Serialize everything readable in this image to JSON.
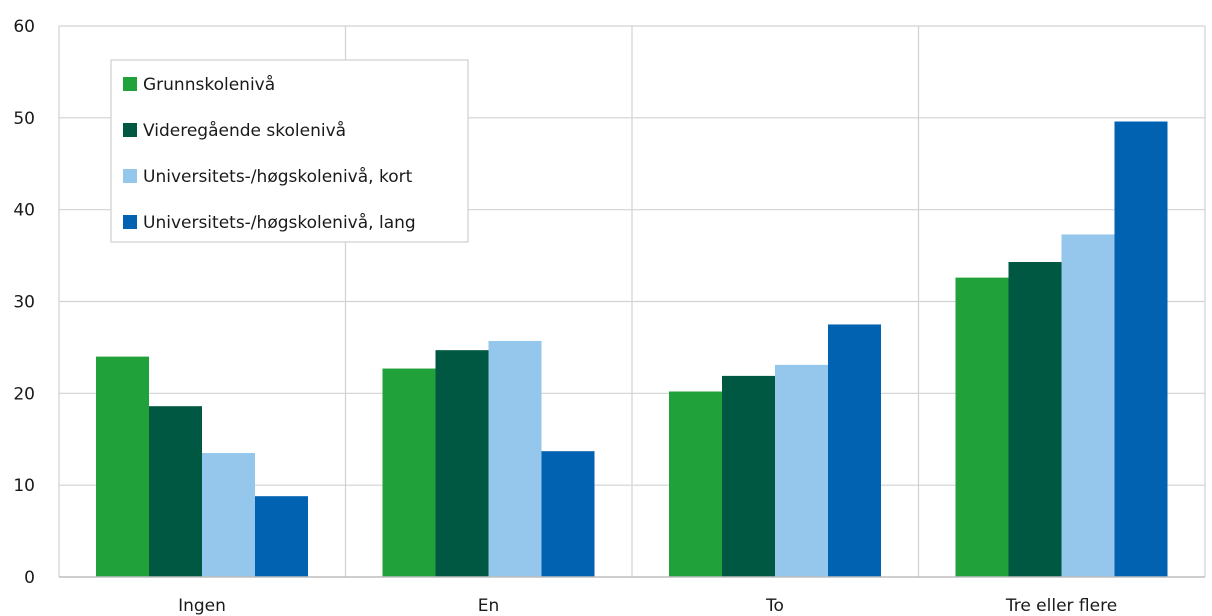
{
  "chart_data": {
    "type": "bar",
    "title": "",
    "xlabel": "",
    "ylabel": "",
    "ylim": [
      0,
      60
    ],
    "yticks": [
      0,
      10,
      20,
      30,
      40,
      50,
      60
    ],
    "grid": true,
    "legend_position": "top-left",
    "categories": [
      "Ingen",
      "En",
      "To",
      "Tre eller flere"
    ],
    "series": [
      {
        "name": "Grunnskolenivå",
        "color": "#21a13a",
        "values": [
          24.0,
          22.7,
          20.2,
          32.6
        ]
      },
      {
        "name": "Videregående skolenivå",
        "color": "#005742",
        "values": [
          18.6,
          24.7,
          21.9,
          34.3
        ]
      },
      {
        "name": "Universitets-/høgskolenivå, kort",
        "color": "#95c6ec",
        "values": [
          13.5,
          25.7,
          23.1,
          37.3
        ]
      },
      {
        "name": "Universitets-/høgskolenivå, lang",
        "color": "#0062b0",
        "values": [
          8.8,
          13.7,
          27.5,
          49.6
        ]
      }
    ],
    "gridline_color": "#d2d2d2"
  }
}
